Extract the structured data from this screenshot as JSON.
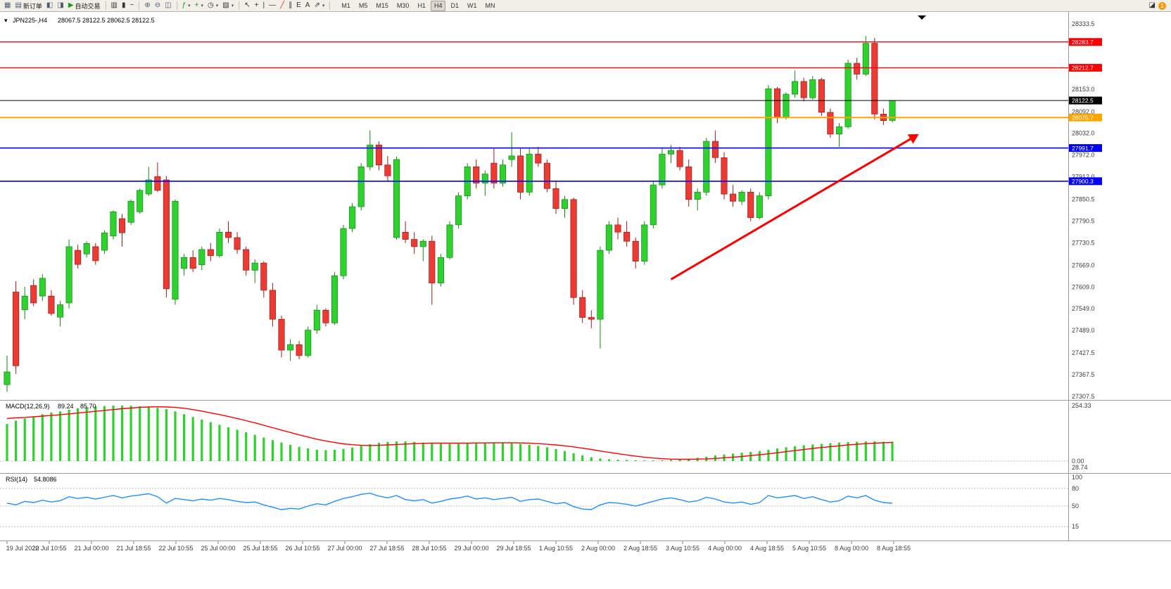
{
  "toolbar": {
    "new_order_label": "新订单",
    "autotrading_label": "自动交易",
    "timeframes": [
      "M1",
      "M5",
      "M15",
      "M30",
      "H1",
      "H4",
      "D1",
      "W1",
      "MN"
    ],
    "active_timeframe": "H4",
    "notification_badge": "1"
  },
  "icons": {
    "app_window": "▦",
    "new_order": "▤",
    "market_watch": "◧",
    "navigator": "◨",
    "autotrading_play": "▶",
    "chart_bars": "▥",
    "chart_candles": "▮",
    "chart_line": "~",
    "zoom_in": "⊕",
    "zoom_out": "⊖",
    "tile_windows": "◫",
    "indicators": "ƒ",
    "add": "+",
    "periods_clock": "◷",
    "templates": "▧",
    "dropdown_caret": "▾",
    "cursor": "↖",
    "crosshair": "+",
    "vline": "|",
    "hline": "—",
    "trendline": "╱",
    "channel": "∥",
    "fibonacci": "E",
    "text_tool": "A",
    "arrows_tool": "⇗",
    "layout": "◪",
    "symbol_dropdown": "▾",
    "shift_marker": "▼"
  },
  "chart": {
    "symbol_label": "JPN225-,H4",
    "ohlc_label": "28067.5 28122.5 28062.5 28122.5",
    "colors": {
      "bull": "#2ed12e",
      "bull_border": "#128a12",
      "bear": "#ea3b34",
      "bear_border": "#a51812",
      "red_line": "#ff0000",
      "blue_line": "#0000ff",
      "orange_line": "#ffa500",
      "price_line": "#000000",
      "macd_hist": "#2ed12e",
      "macd_signal": "#ff0000",
      "rsi": "#1e8fff",
      "axis_text": "#3c3c3c"
    },
    "macd_title": "MACD(12,26,9)",
    "macd_main_value": "89.24",
    "macd_signal_value": "85.70",
    "macd_axis_labels": [
      "254.33",
      "0.00",
      "28.74"
    ],
    "rsi_title": "RSI(14)",
    "rsi_value": "54.8086",
    "rsi_axis_labels": [
      "100",
      "80",
      "50",
      "15"
    ],
    "price_axis_labels": [
      "28333.5",
      "28153.0",
      "28092.0",
      "28032.0",
      "27972.0",
      "27912.0",
      "27850.5",
      "27790.5",
      "27730.5",
      "27669.0",
      "27609.0",
      "27549.0",
      "27489.0",
      "27427.5",
      "27367.5",
      "27307.5"
    ]
  },
  "chart_data": {
    "type": "candlestick",
    "symbol": "JPN225-",
    "timeframe": "H4",
    "title": "JPN225-,H4",
    "ylim": [
      27307.5,
      28333.5
    ],
    "current_price": 28122.5,
    "ohlc_current": [
      28067.5,
      28122.5,
      28062.5,
      28122.5
    ],
    "x_tick_labels": [
      "19 Jul 2022",
      "20 Jul 10:55",
      "21 Jul 00:00",
      "21 Jul 18:55",
      "22 Jul 10:55",
      "25 Jul 00:00",
      "25 Jul 18:55",
      "26 Jul 10:55",
      "27 Jul 00:00",
      "27 Jul 18:55",
      "28 Jul 10:55",
      "29 Jul 00:00",
      "29 Jul 18:55",
      "1 Aug 10:55",
      "2 Aug 00:00",
      "2 Aug 18:55",
      "3 Aug 10:55",
      "4 Aug 00:00",
      "4 Aug 18:55",
      "5 Aug 10:55",
      "8 Aug 00:00",
      "8 Aug 18:55"
    ],
    "candles": [
      [
        27340,
        27420,
        27320,
        27375
      ],
      [
        27595,
        27625,
        27370,
        27392
      ],
      [
        27546,
        27610,
        27520,
        27584
      ],
      [
        27613,
        27630,
        27556,
        27565
      ],
      [
        27584,
        27645,
        27570,
        27633
      ],
      [
        27584,
        27600,
        27530,
        27536
      ],
      [
        27526,
        27570,
        27500,
        27560
      ],
      [
        27565,
        27740,
        27550,
        27720
      ],
      [
        27710,
        27725,
        27660,
        27671
      ],
      [
        27700,
        27735,
        27690,
        27729
      ],
      [
        27720,
        27730,
        27670,
        27681
      ],
      [
        27710,
        27765,
        27700,
        27758
      ],
      [
        27749,
        27820,
        27740,
        27816
      ],
      [
        27797,
        27810,
        27720,
        27758
      ],
      [
        27787,
        27850,
        27780,
        27845
      ],
      [
        27816,
        27880,
        27810,
        27875
      ],
      [
        27865,
        27940,
        27860,
        27904
      ],
      [
        27913,
        27952,
        27870,
        27875
      ],
      [
        27904,
        27915,
        27580,
        27604
      ],
      [
        27575,
        27850,
        27560,
        27845
      ],
      [
        27660,
        27700,
        27640,
        27690
      ],
      [
        27690,
        27710,
        27650,
        27660
      ],
      [
        27670,
        27720,
        27655,
        27712
      ],
      [
        27712,
        27730,
        27680,
        27695
      ],
      [
        27695,
        27770,
        27690,
        27760
      ],
      [
        27760,
        27790,
        27730,
        27745
      ],
      [
        27745,
        27760,
        27700,
        27712
      ],
      [
        27712,
        27720,
        27640,
        27655
      ],
      [
        27655,
        27685,
        27620,
        27675
      ],
      [
        27675,
        27680,
        27580,
        27600
      ],
      [
        27600,
        27620,
        27500,
        27520
      ],
      [
        27520,
        27530,
        27415,
        27435
      ],
      [
        27435,
        27465,
        27405,
        27450
      ],
      [
        27450,
        27460,
        27410,
        27420
      ],
      [
        27420,
        27500,
        27415,
        27490
      ],
      [
        27490,
        27560,
        27480,
        27545
      ],
      [
        27545,
        27550,
        27500,
        27510
      ],
      [
        27510,
        27650,
        27505,
        27640
      ],
      [
        27640,
        27780,
        27630,
        27770
      ],
      [
        27770,
        27840,
        27760,
        27830
      ],
      [
        27830,
        27950,
        27820,
        27940
      ],
      [
        27940,
        28040,
        27930,
        28000
      ],
      [
        28000,
        28010,
        27930,
        27945
      ],
      [
        27945,
        27970,
        27900,
        27915
      ],
      [
        27745,
        27968,
        27740,
        27960
      ],
      [
        27760,
        27790,
        27730,
        27740
      ],
      [
        27740,
        27760,
        27700,
        27720
      ],
      [
        27720,
        27740,
        27680,
        27735
      ],
      [
        27735,
        27750,
        27560,
        27620
      ],
      [
        27620,
        27700,
        27610,
        27690
      ],
      [
        27690,
        27790,
        27685,
        27780
      ],
      [
        27780,
        27870,
        27770,
        27860
      ],
      [
        27860,
        27950,
        27850,
        27940
      ],
      [
        27940,
        27960,
        27880,
        27895
      ],
      [
        27895,
        27930,
        27860,
        27920
      ],
      [
        27950,
        27990,
        27880,
        27895
      ],
      [
        27895,
        27960,
        27885,
        27945
      ],
      [
        27960,
        28035,
        27940,
        27970
      ],
      [
        27970,
        27990,
        27850,
        27870
      ],
      [
        27870,
        27990,
        27860,
        27975
      ],
      [
        27975,
        27995,
        27940,
        27950
      ],
      [
        27950,
        27960,
        27870,
        27880
      ],
      [
        27880,
        27900,
        27810,
        27825
      ],
      [
        27825,
        27860,
        27800,
        27850
      ],
      [
        27850,
        27855,
        27560,
        27580
      ],
      [
        27580,
        27600,
        27510,
        27525
      ],
      [
        27525,
        27545,
        27495,
        27520
      ],
      [
        27520,
        27720,
        27440,
        27710
      ],
      [
        27710,
        27790,
        27700,
        27780
      ],
      [
        27780,
        27800,
        27740,
        27760
      ],
      [
        27760,
        27790,
        27720,
        27735
      ],
      [
        27735,
        27745,
        27660,
        27680
      ],
      [
        27680,
        27790,
        27670,
        27780
      ],
      [
        27780,
        27900,
        27770,
        27890
      ],
      [
        27890,
        27990,
        27880,
        27975
      ],
      [
        27975,
        28000,
        27950,
        27985
      ],
      [
        27985,
        27995,
        27930,
        27940
      ],
      [
        27940,
        27960,
        27830,
        27850
      ],
      [
        27850,
        27880,
        27820,
        27870
      ],
      [
        27870,
        28020,
        27860,
        28010
      ],
      [
        28010,
        28040,
        27950,
        27965
      ],
      [
        27965,
        27980,
        27850,
        27865
      ],
      [
        27865,
        27890,
        27830,
        27845
      ],
      [
        27845,
        27875,
        27835,
        27870
      ],
      [
        27870,
        27880,
        27790,
        27800
      ],
      [
        27800,
        27870,
        27795,
        27860
      ],
      [
        27860,
        28165,
        27850,
        28155
      ],
      [
        28155,
        28160,
        28060,
        28075
      ],
      [
        28075,
        28145,
        28070,
        28140
      ],
      [
        28140,
        28205,
        28130,
        28175
      ],
      [
        28175,
        28185,
        28120,
        28130
      ],
      [
        28130,
        28190,
        28125,
        28180
      ],
      [
        28180,
        28185,
        28080,
        28090
      ],
      [
        28090,
        28100,
        28020,
        28030
      ],
      [
        28030,
        28060,
        27995,
        28050
      ],
      [
        28050,
        28235,
        28045,
        28225
      ],
      [
        28225,
        28240,
        28180,
        28195
      ],
      [
        28195,
        28300,
        28190,
        28280
      ],
      [
        28280,
        28295,
        28070,
        28085
      ],
      [
        28085,
        28100,
        28055,
        28067
      ],
      [
        28067.5,
        28122.5,
        28062.5,
        28122.5
      ]
    ],
    "levels": [
      {
        "price": 28283.7,
        "label": "28283.7",
        "color": "#ff0000",
        "width": 1.4
      },
      {
        "price": 28212.7,
        "label": "28212.7",
        "color": "#ff0000",
        "width": 1.4
      },
      {
        "price": 28122.5,
        "label": "28122.5",
        "color": "#000000",
        "width": 1
      },
      {
        "price": 28075.7,
        "label": "28075.7",
        "color": "#ffa500",
        "width": 2
      },
      {
        "price": 27991.7,
        "label": "27991.7",
        "color": "#0000ff",
        "width": 1.6
      },
      {
        "price": 27900.3,
        "label": "27900.3",
        "color": "#0000ff",
        "width": 1.6
      }
    ],
    "annotations": [
      {
        "type": "arrow",
        "color": "#ff0000",
        "from": {
          "bar": 75,
          "price": 27630
        },
        "to": {
          "bar": 103,
          "price": 28030
        }
      }
    ],
    "macd": {
      "max": 254.33,
      "histogram": [
        170,
        185,
        195,
        205,
        215,
        222,
        228,
        235,
        242,
        246,
        250,
        252,
        254,
        254,
        253,
        251,
        248,
        244,
        238,
        228,
        215,
        202,
        190,
        178,
        166,
        155,
        144,
        132,
        120,
        108,
        96,
        85,
        74,
        65,
        58,
        52,
        50,
        52,
        56,
        62,
        70,
        78,
        84,
        88,
        90,
        90,
        88,
        85,
        82,
        80,
        79,
        80,
        82,
        84,
        85,
        85,
        84,
        82,
        79,
        75,
        70,
        63,
        55,
        46,
        36,
        26,
        18,
        12,
        8,
        6,
        5,
        4,
        3,
        3,
        4,
        6,
        8,
        11,
        15,
        20,
        26,
        30,
        34,
        38,
        42,
        46,
        52,
        58,
        63,
        68,
        72,
        76,
        79,
        82,
        85,
        87,
        89,
        90,
        90,
        89,
        89.24
      ],
      "signal": [
        195,
        198,
        200,
        203,
        206,
        209,
        212,
        216,
        220,
        224,
        228,
        232,
        236,
        240,
        243,
        246,
        248,
        249,
        248,
        246,
        242,
        236,
        229,
        221,
        213,
        204,
        195,
        185,
        175,
        164,
        153,
        142,
        131,
        120,
        110,
        100,
        92,
        85,
        79,
        75,
        72,
        71,
        72,
        74,
        76,
        78,
        80,
        81,
        82,
        82,
        82,
        82,
        82,
        83,
        83,
        84,
        84,
        84,
        83,
        82,
        80,
        77,
        74,
        70,
        65,
        59,
        53,
        46,
        40,
        34,
        28,
        23,
        18,
        14,
        11,
        9,
        8,
        8,
        9,
        10,
        12,
        15,
        18,
        21,
        25,
        29,
        33,
        38,
        43,
        48,
        53,
        58,
        62,
        66,
        70,
        74,
        77,
        80,
        82,
        84,
        85.7
      ]
    },
    "rsi": {
      "levels": [
        80,
        50,
        15
      ],
      "values": [
        55,
        52,
        58,
        56,
        60,
        57,
        59,
        66,
        63,
        65,
        62,
        65,
        68,
        64,
        67,
        69,
        71,
        66,
        55,
        63,
        61,
        59,
        62,
        60,
        63,
        61,
        58,
        56,
        57,
        52,
        48,
        44,
        46,
        45,
        50,
        54,
        52,
        58,
        63,
        66,
        70,
        72,
        67,
        64,
        68,
        61,
        59,
        61,
        55,
        58,
        62,
        64,
        67,
        62,
        64,
        61,
        63,
        65,
        58,
        61,
        62,
        58,
        54,
        56,
        49,
        45,
        44,
        52,
        56,
        55,
        53,
        50,
        54,
        58,
        62,
        64,
        61,
        57,
        59,
        65,
        62,
        57,
        55,
        57,
        53,
        56,
        68,
        64,
        66,
        68,
        63,
        66,
        61,
        57,
        59,
        67,
        64,
        68,
        60,
        56,
        54.8
      ]
    }
  }
}
